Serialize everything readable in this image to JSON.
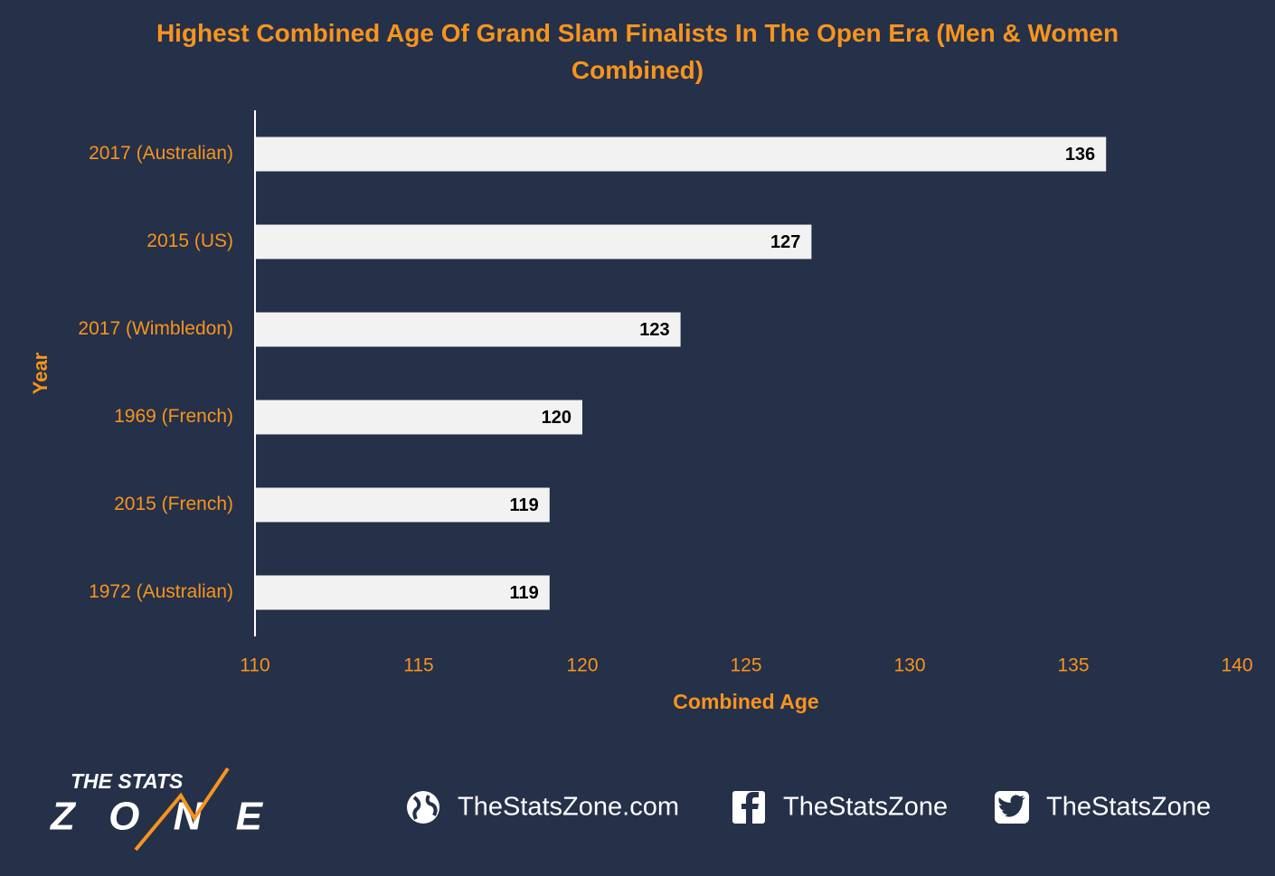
{
  "chart_data": {
    "type": "hbar",
    "title": "Highest Combined Age Of Grand Slam Finalists In The Open Era (Men & Women Combined)",
    "xlabel": "Combined Age",
    "ylabel": "Year",
    "categories": [
      "2017 (Australian)",
      "2015 (US)",
      "2017 (Wimbledon)",
      "1969 (French)",
      "2015 (French)",
      "1972 (Australian)"
    ],
    "values": [
      136,
      127,
      123,
      120,
      119,
      119
    ],
    "color": "#f2f2f2",
    "xlim": [
      110,
      140
    ],
    "xticks": [
      110,
      115,
      120,
      125,
      130,
      135,
      140
    ],
    "grid": false
  },
  "footer": {
    "logo": [
      "THE STATS",
      "ZONE"
    ],
    "links": [
      "TheStatsZone.com",
      "TheStatsZone",
      "TheStatsZone"
    ]
  }
}
